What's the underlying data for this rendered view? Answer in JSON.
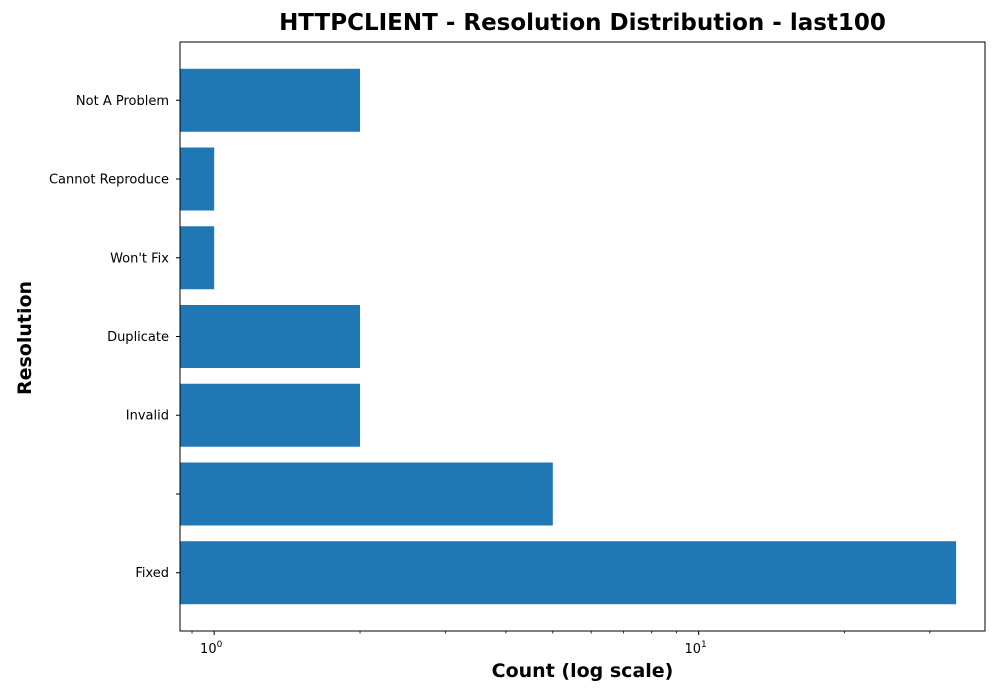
{
  "chart_data": {
    "type": "bar",
    "orientation": "horizontal",
    "title": "HTTPCLIENT - Resolution Distribution - last100",
    "xlabel": "Count (log scale)",
    "ylabel": "Resolution",
    "x_scale": "log",
    "xlim": [
      0.85,
      39
    ],
    "x_ticks": [
      {
        "value": 1,
        "base": "10",
        "exp": "0"
      },
      {
        "value": 10,
        "base": "10",
        "exp": "1"
      }
    ],
    "categories": [
      "Fixed",
      "",
      "Invalid",
      "Duplicate",
      "Won't Fix",
      "Cannot Reproduce",
      "Not A Problem"
    ],
    "values": [
      34,
      5,
      2,
      2,
      1,
      1,
      2
    ],
    "bar_color": "#1f77b4",
    "grid": false
  }
}
